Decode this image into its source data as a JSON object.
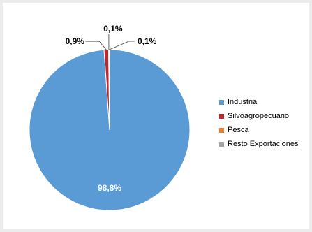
{
  "chart_data": {
    "type": "pie",
    "title": "",
    "categories": [
      "Industria",
      "Silvoagropecuario",
      "Pesca",
      "Resto Exportaciones"
    ],
    "values": [
      98.8,
      0.9,
      0.1,
      0.1
    ],
    "data_labels": [
      "98,8%",
      "0,9%",
      "0,1%",
      "0,1%"
    ],
    "colors": [
      "#5b9bd5",
      "#c0282d",
      "#ed7d31",
      "#a5a5a5"
    ],
    "legend_position": "right"
  }
}
